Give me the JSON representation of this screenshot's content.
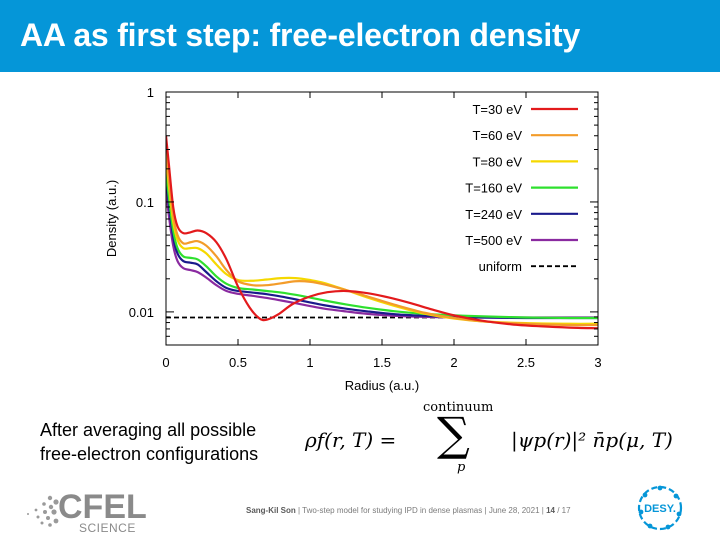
{
  "slide": {
    "title": "AA as first step: free-electron density",
    "caption_line1": "After averaging all possible",
    "caption_line2": "free-electron configurations"
  },
  "formula": {
    "lhs": "ρf(r, T) =",
    "sum_upper": "continuum",
    "sum_symbol": "∑",
    "sum_lower": "p",
    "rhs": "|ψp(r)|² n̄p(μ, T)"
  },
  "footer": {
    "author": "Sang-Kil Son",
    "talk": "Two-step model for studying IPD in dense plasmas",
    "date": "June 28, 2021",
    "page": "14",
    "total": "/ 17",
    "sep": "|"
  },
  "logos": {
    "cfel_word": "CFEL",
    "cfel_sub": "SCIENCE",
    "desy": "DESY."
  },
  "colors": {
    "header": "#0596d8",
    "desy": "#0596d8"
  },
  "chart_data": {
    "type": "line",
    "xlabel": "Radius (a.u.)",
    "ylabel": "Density (a.u.)",
    "xlim": [
      0,
      3
    ],
    "ylim": [
      0.005,
      1
    ],
    "yscale": "log",
    "xticks": [
      0,
      0.5,
      1,
      1.5,
      2,
      2.5,
      3
    ],
    "xtick_labels": [
      "0",
      "0.5",
      "1",
      "1.5",
      "2",
      "2.5",
      "3"
    ],
    "yticks": [
      0.01,
      0.1,
      1
    ],
    "ytick_labels": [
      "0.01",
      "0.1",
      "1"
    ],
    "grid": false,
    "legend_position": "top-right",
    "series": [
      {
        "name": "T=30 eV",
        "color": "#e31a1c",
        "dash": "solid",
        "x": [
          0.0,
          0.02,
          0.05,
          0.08,
          0.12,
          0.17,
          0.22,
          0.28,
          0.35,
          0.42,
          0.5,
          0.58,
          0.65,
          0.7,
          0.78,
          0.88,
          1.0,
          1.12,
          1.25,
          1.4,
          1.55,
          1.7,
          1.85,
          2.0,
          2.2,
          2.4,
          2.6,
          2.8,
          3.0
        ],
        "y": [
          0.4,
          0.22,
          0.09,
          0.06,
          0.052,
          0.053,
          0.055,
          0.052,
          0.043,
          0.03,
          0.017,
          0.011,
          0.0087,
          0.0085,
          0.0095,
          0.0118,
          0.0138,
          0.0151,
          0.0155,
          0.0148,
          0.0135,
          0.012,
          0.0105,
          0.0093,
          0.0083,
          0.0077,
          0.0074,
          0.0072,
          0.0071
        ]
      },
      {
        "name": "T=60 eV",
        "color": "#f39c2a",
        "dash": "solid",
        "x": [
          0.0,
          0.02,
          0.05,
          0.08,
          0.12,
          0.17,
          0.22,
          0.28,
          0.35,
          0.42,
          0.5,
          0.6,
          0.7,
          0.8,
          0.9,
          1.0,
          1.1,
          1.25,
          1.4,
          1.6,
          1.8,
          2.0,
          2.2,
          2.5,
          2.8,
          3.0
        ],
        "y": [
          0.3,
          0.16,
          0.075,
          0.05,
          0.042,
          0.043,
          0.044,
          0.04,
          0.032,
          0.024,
          0.019,
          0.0175,
          0.0175,
          0.0182,
          0.019,
          0.0188,
          0.0178,
          0.0158,
          0.0138,
          0.0115,
          0.0098,
          0.0088,
          0.0082,
          0.0078,
          0.0076,
          0.0076
        ]
      },
      {
        "name": "T=80 eV",
        "color": "#f5d800",
        "dash": "solid",
        "x": [
          0.0,
          0.02,
          0.05,
          0.08,
          0.12,
          0.17,
          0.22,
          0.28,
          0.35,
          0.42,
          0.5,
          0.6,
          0.7,
          0.8,
          0.9,
          1.0,
          1.1,
          1.25,
          1.4,
          1.6,
          1.8,
          2.0,
          2.2,
          2.5,
          2.8,
          3.0
        ],
        "y": [
          0.26,
          0.14,
          0.066,
          0.045,
          0.038,
          0.038,
          0.038,
          0.034,
          0.027,
          0.022,
          0.0195,
          0.0192,
          0.0197,
          0.0203,
          0.0203,
          0.0195,
          0.0183,
          0.0158,
          0.0135,
          0.0112,
          0.0096,
          0.0087,
          0.0082,
          0.0079,
          0.0078,
          0.0078
        ]
      },
      {
        "name": "T=160 eV",
        "color": "#2ee02e",
        "dash": "solid",
        "x": [
          0.0,
          0.02,
          0.05,
          0.08,
          0.12,
          0.17,
          0.22,
          0.28,
          0.35,
          0.42,
          0.5,
          0.6,
          0.7,
          0.8,
          0.9,
          1.0,
          1.1,
          1.25,
          1.4,
          1.6,
          1.8,
          2.0,
          2.2,
          2.5,
          2.8,
          3.0
        ],
        "y": [
          0.2,
          0.11,
          0.055,
          0.038,
          0.032,
          0.031,
          0.03,
          0.026,
          0.021,
          0.018,
          0.0165,
          0.016,
          0.0155,
          0.015,
          0.0143,
          0.0135,
          0.0127,
          0.0117,
          0.0109,
          0.0101,
          0.0096,
          0.0093,
          0.0091,
          0.0089,
          0.0088,
          0.0088
        ]
      },
      {
        "name": "T=240 eV",
        "color": "#1a1a8c",
        "dash": "solid",
        "x": [
          0.0,
          0.02,
          0.05,
          0.08,
          0.12,
          0.17,
          0.22,
          0.28,
          0.35,
          0.42,
          0.5,
          0.6,
          0.7,
          0.8,
          0.9,
          1.0,
          1.1,
          1.25,
          1.4,
          1.6,
          1.8,
          2.0,
          2.2,
          2.5,
          2.8,
          3.0
        ],
        "y": [
          0.17,
          0.095,
          0.048,
          0.034,
          0.029,
          0.028,
          0.027,
          0.023,
          0.019,
          0.0165,
          0.0155,
          0.015,
          0.0145,
          0.0138,
          0.013,
          0.0122,
          0.0115,
          0.0107,
          0.0101,
          0.0095,
          0.0092,
          0.009,
          0.0089,
          0.0088,
          0.0088,
          0.0088
        ]
      },
      {
        "name": "T=500 eV",
        "color": "#8a2aa0",
        "dash": "solid",
        "x": [
          0.0,
          0.02,
          0.05,
          0.08,
          0.12,
          0.17,
          0.22,
          0.28,
          0.35,
          0.42,
          0.5,
          0.6,
          0.7,
          0.8,
          0.9,
          1.0,
          1.1,
          1.25,
          1.4,
          1.6,
          1.8,
          2.0,
          2.2,
          2.5,
          2.8,
          3.0
        ],
        "y": [
          0.13,
          0.075,
          0.04,
          0.029,
          0.025,
          0.024,
          0.023,
          0.0205,
          0.0175,
          0.0155,
          0.0146,
          0.014,
          0.0134,
          0.0127,
          0.012,
          0.0113,
          0.0107,
          0.0101,
          0.0096,
          0.0092,
          0.009,
          0.0089,
          0.0089,
          0.0089,
          0.0089,
          0.0089
        ]
      },
      {
        "name": "uniform",
        "color": "#000000",
        "dash": "dashed",
        "x": [
          0.0,
          3.0
        ],
        "y": [
          0.0089,
          0.0089
        ]
      }
    ]
  }
}
